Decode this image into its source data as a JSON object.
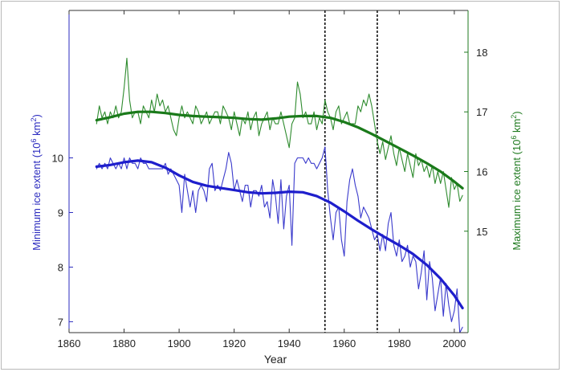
{
  "chart_data": {
    "type": "line",
    "xlabel": "Year",
    "x_ticks": [
      1860,
      1880,
      1900,
      1920,
      1940,
      1960,
      1980,
      2000
    ],
    "xlim": [
      1860,
      2005
    ],
    "left_axis": {
      "label": "Minimum ice extent (10",
      "label_sup": "6",
      "label_tail": " km",
      "label_sup2": "2",
      "label_end": ")",
      "ticks": [
        7,
        8,
        9,
        10
      ],
      "ylim": [
        6.8,
        12.7
      ],
      "color": "#2b2bbf"
    },
    "right_axis": {
      "label": "Maximum ice extent (10",
      "label_sup": "6",
      "label_tail": " km",
      "label_sup2": "2",
      "label_end": ")",
      "ticks": [
        15,
        16,
        17,
        18
      ],
      "ylim": [
        13.3,
        18.7
      ],
      "color": "#1f7a1f"
    },
    "vlines": [
      1953,
      1972
    ],
    "series": [
      {
        "axis": "right",
        "style": "raw",
        "color": "#2e8b2e",
        "x": [
          1870,
          1871,
          1872,
          1873,
          1874,
          1875,
          1876,
          1877,
          1878,
          1879,
          1880,
          1881,
          1882,
          1883,
          1884,
          1885,
          1886,
          1887,
          1888,
          1889,
          1890,
          1891,
          1892,
          1893,
          1894,
          1895,
          1896,
          1897,
          1898,
          1899,
          1900,
          1901,
          1902,
          1903,
          1904,
          1905,
          1906,
          1907,
          1908,
          1909,
          1910,
          1911,
          1912,
          1913,
          1914,
          1915,
          1916,
          1917,
          1918,
          1919,
          1920,
          1921,
          1922,
          1923,
          1924,
          1925,
          1926,
          1927,
          1928,
          1929,
          1930,
          1931,
          1932,
          1933,
          1934,
          1935,
          1936,
          1937,
          1938,
          1939,
          1940,
          1941,
          1942,
          1943,
          1944,
          1945,
          1946,
          1947,
          1948,
          1949,
          1950,
          1951,
          1952,
          1953,
          1954,
          1955,
          1956,
          1957,
          1958,
          1959,
          1960,
          1961,
          1962,
          1963,
          1964,
          1965,
          1966,
          1967,
          1968,
          1969,
          1970,
          1971,
          1972,
          1973,
          1974,
          1975,
          1976,
          1977,
          1978,
          1979,
          1980,
          1981,
          1982,
          1983,
          1984,
          1985,
          1986,
          1987,
          1988,
          1989,
          1990,
          1991,
          1992,
          1993,
          1994,
          1995,
          1996,
          1997,
          1998,
          1999,
          2000,
          2001,
          2002,
          2003
        ],
        "y": [
          16.8,
          17.1,
          16.9,
          17.0,
          16.8,
          17.0,
          16.9,
          17.1,
          16.9,
          17.0,
          17.4,
          17.9,
          17.2,
          16.9,
          17.0,
          17.0,
          16.8,
          17.1,
          17.0,
          16.9,
          17.2,
          17.0,
          17.3,
          17.1,
          17.2,
          17.0,
          17.1,
          16.9,
          16.7,
          16.6,
          16.9,
          17.1,
          16.9,
          17.0,
          16.9,
          16.8,
          17.1,
          17.0,
          16.8,
          16.9,
          17.0,
          16.8,
          16.9,
          17.0,
          17.0,
          16.8,
          17.1,
          17.0,
          16.9,
          16.7,
          17.0,
          16.8,
          16.6,
          16.9,
          16.8,
          17.0,
          16.7,
          16.9,
          17.0,
          16.6,
          16.8,
          16.9,
          17.0,
          16.7,
          16.9,
          16.8,
          16.8,
          17.0,
          16.8,
          16.6,
          16.4,
          16.8,
          16.9,
          17.5,
          17.3,
          16.9,
          17.0,
          16.8,
          16.8,
          17.0,
          16.7,
          16.9,
          16.8,
          17.2,
          17.0,
          16.9,
          16.7,
          17.0,
          17.1,
          16.8,
          16.9,
          17.0,
          16.8,
          16.8,
          16.8,
          17.1,
          17.0,
          17.2,
          17.1,
          17.3,
          17.1,
          16.8,
          16.5,
          16.3,
          16.5,
          16.2,
          16.4,
          16.6,
          16.3,
          16.1,
          16.4,
          16.2,
          16.0,
          16.3,
          16.1,
          15.9,
          16.3,
          16.1,
          16.2,
          16.0,
          16.1,
          15.9,
          16.1,
          15.8,
          16.0,
          15.8,
          16.0,
          15.7,
          15.4,
          15.9,
          15.7,
          15.8,
          15.5,
          15.6
        ]
      },
      {
        "axis": "right",
        "style": "smooth",
        "color": "#1a7a1a",
        "x": [
          1870,
          1875,
          1880,
          1885,
          1890,
          1895,
          1900,
          1905,
          1910,
          1915,
          1920,
          1925,
          1930,
          1935,
          1940,
          1945,
          1950,
          1955,
          1960,
          1965,
          1970,
          1975,
          1980,
          1985,
          1990,
          1995,
          2000,
          2003
        ],
        "y": [
          16.86,
          16.91,
          16.97,
          17.0,
          17.0,
          16.98,
          16.95,
          16.93,
          16.92,
          16.91,
          16.9,
          16.88,
          16.87,
          16.89,
          16.92,
          16.93,
          16.93,
          16.9,
          16.83,
          16.74,
          16.63,
          16.51,
          16.39,
          16.27,
          16.14,
          16.0,
          15.83,
          15.72
        ]
      },
      {
        "axis": "left",
        "style": "raw",
        "color": "#3a3acc",
        "x": [
          1870,
          1871,
          1872,
          1873,
          1874,
          1875,
          1876,
          1877,
          1878,
          1879,
          1880,
          1881,
          1882,
          1883,
          1884,
          1885,
          1886,
          1887,
          1888,
          1889,
          1890,
          1891,
          1892,
          1893,
          1894,
          1895,
          1896,
          1897,
          1898,
          1899,
          1900,
          1901,
          1902,
          1903,
          1904,
          1905,
          1906,
          1907,
          1908,
          1909,
          1910,
          1911,
          1912,
          1913,
          1914,
          1915,
          1916,
          1917,
          1918,
          1919,
          1920,
          1921,
          1922,
          1923,
          1924,
          1925,
          1926,
          1927,
          1928,
          1929,
          1930,
          1931,
          1932,
          1933,
          1934,
          1935,
          1936,
          1937,
          1938,
          1939,
          1940,
          1941,
          1942,
          1943,
          1944,
          1945,
          1946,
          1947,
          1948,
          1949,
          1950,
          1951,
          1952,
          1953,
          1954,
          1955,
          1956,
          1957,
          1958,
          1959,
          1960,
          1961,
          1962,
          1963,
          1964,
          1965,
          1966,
          1967,
          1968,
          1969,
          1970,
          1971,
          1972,
          1973,
          1974,
          1975,
          1976,
          1977,
          1978,
          1979,
          1980,
          1981,
          1982,
          1983,
          1984,
          1985,
          1986,
          1987,
          1988,
          1989,
          1990,
          1991,
          1992,
          1993,
          1994,
          1995,
          1996,
          1997,
          1998,
          1999,
          2000,
          2001,
          2002,
          2003
        ],
        "y": [
          9.8,
          9.9,
          9.8,
          9.9,
          9.8,
          10.0,
          9.9,
          9.8,
          9.9,
          9.8,
          10.0,
          9.8,
          10.0,
          9.9,
          9.9,
          9.8,
          10.0,
          9.9,
          9.9,
          9.8,
          9.8,
          9.8,
          9.8,
          9.8,
          9.8,
          9.9,
          9.7,
          9.8,
          9.7,
          9.6,
          9.5,
          9.0,
          9.7,
          9.4,
          9.1,
          9.4,
          9.0,
          9.4,
          9.5,
          9.4,
          9.2,
          9.8,
          9.9,
          9.4,
          9.5,
          9.4,
          9.6,
          9.8,
          10.1,
          9.9,
          9.4,
          9.6,
          9.4,
          9.2,
          9.5,
          9.5,
          9.1,
          9.4,
          9.4,
          9.3,
          9.5,
          9.1,
          9.2,
          8.9,
          9.6,
          9.3,
          8.8,
          9.6,
          8.7,
          9.3,
          9.5,
          8.4,
          9.9,
          10.0,
          10.0,
          10.0,
          9.9,
          10.0,
          9.9,
          9.9,
          9.8,
          9.9,
          10.0,
          10.2,
          9.4,
          8.9,
          8.5,
          9.0,
          9.1,
          8.5,
          8.2,
          9.2,
          9.6,
          9.8,
          9.5,
          9.3,
          8.9,
          9.1,
          9.0,
          8.9,
          8.7,
          8.5,
          8.6,
          8.3,
          8.6,
          8.3,
          8.8,
          9.0,
          8.4,
          8.2,
          8.5,
          8.1,
          8.2,
          8.4,
          8.0,
          8.2,
          8.1,
          7.6,
          7.9,
          8.3,
          7.4,
          8.1,
          7.8,
          7.2,
          7.5,
          7.8,
          7.1,
          7.7,
          7.3,
          7.0,
          7.2,
          7.6,
          6.8,
          6.9
        ]
      },
      {
        "axis": "left",
        "style": "smooth",
        "color": "#1e1ecc",
        "x": [
          1870,
          1875,
          1880,
          1885,
          1890,
          1895,
          1900,
          1905,
          1910,
          1915,
          1920,
          1925,
          1930,
          1935,
          1940,
          1945,
          1950,
          1955,
          1960,
          1965,
          1970,
          1975,
          1980,
          1985,
          1990,
          1995,
          2000,
          2003
        ],
        "y": [
          9.84,
          9.87,
          9.92,
          9.95,
          9.92,
          9.82,
          9.68,
          9.56,
          9.49,
          9.45,
          9.41,
          9.37,
          9.35,
          9.36,
          9.38,
          9.37,
          9.3,
          9.18,
          9.02,
          8.85,
          8.69,
          8.54,
          8.4,
          8.24,
          8.04,
          7.79,
          7.48,
          7.25
        ]
      }
    ]
  }
}
